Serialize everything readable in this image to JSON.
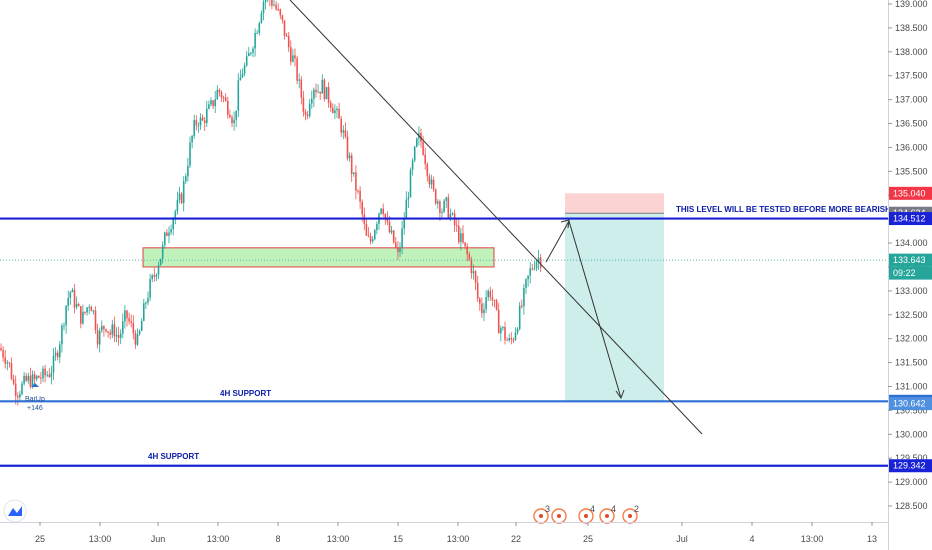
{
  "chart_data": {
    "type": "candlestick",
    "y_axis": {
      "ylim": [
        128.2,
        139.1
      ],
      "ticks": [
        "128.500",
        "129.000",
        "129.500",
        "130.000",
        "130.500",
        "131.000",
        "131.500",
        "132.000",
        "132.500",
        "133.000",
        "133.500",
        "134.000",
        "134.500",
        "135.000",
        "135.500",
        "136.000",
        "136.500",
        "137.000",
        "137.500",
        "138.000",
        "138.500",
        "139.000"
      ]
    },
    "x_axis": {
      "ticks": [
        "25",
        "13:00",
        "Jun",
        "13:00",
        "8",
        "13:00",
        "15",
        "13:00",
        "22",
        "25",
        "Jul",
        "4",
        "13:00",
        "13"
      ]
    },
    "price_path": [
      [
        0,
        131.8
      ],
      [
        6,
        131.6
      ],
      [
        10,
        131.4
      ],
      [
        14,
        131.0
      ],
      [
        18,
        130.9
      ],
      [
        22,
        131.0
      ],
      [
        26,
        131.1
      ],
      [
        30,
        131.15
      ],
      [
        34,
        131.1
      ],
      [
        38,
        131.2
      ],
      [
        42,
        131.2
      ],
      [
        46,
        131.25
      ],
      [
        50,
        131.3
      ],
      [
        54,
        131.5
      ],
      [
        58,
        131.8
      ],
      [
        62,
        132.2
      ],
      [
        66,
        132.7
      ],
      [
        70,
        133.0
      ],
      [
        74,
        132.8
      ],
      [
        78,
        132.6
      ],
      [
        82,
        132.4
      ],
      [
        86,
        132.6
      ],
      [
        90,
        132.8
      ],
      [
        94,
        132.5
      ],
      [
        98,
        132.0
      ],
      [
        102,
        132.2
      ],
      [
        106,
        132.3
      ],
      [
        110,
        132.1
      ],
      [
        114,
        132.2
      ],
      [
        118,
        132.0
      ],
      [
        122,
        132.2
      ],
      [
        126,
        132.5
      ],
      [
        130,
        132.3
      ],
      [
        134,
        132.1
      ],
      [
        138,
        131.9
      ],
      [
        142,
        132.4
      ],
      [
        146,
        132.8
      ],
      [
        150,
        133.1
      ],
      [
        154,
        133.3
      ],
      [
        158,
        133.6
      ],
      [
        162,
        133.8
      ],
      [
        166,
        134.2
      ],
      [
        170,
        134.4
      ],
      [
        174,
        134.6
      ],
      [
        178,
        134.8
      ],
      [
        182,
        135.0
      ],
      [
        186,
        135.5
      ],
      [
        190,
        136.0
      ],
      [
        194,
        136.4
      ],
      [
        198,
        136.6
      ],
      [
        202,
        136.5
      ],
      [
        206,
        136.7
      ],
      [
        210,
        136.8
      ],
      [
        214,
        137.0
      ],
      [
        218,
        137.2
      ],
      [
        222,
        137.1
      ],
      [
        226,
        136.9
      ],
      [
        230,
        136.8
      ],
      [
        234,
        136.5
      ],
      [
        238,
        137.2
      ],
      [
        242,
        137.6
      ],
      [
        246,
        137.7
      ],
      [
        250,
        138.0
      ],
      [
        254,
        138.3
      ],
      [
        258,
        138.6
      ],
      [
        262,
        139.0
      ],
      [
        266,
        139.2
      ],
      [
        270,
        139.1
      ],
      [
        274,
        139.0
      ],
      [
        278,
        138.8
      ],
      [
        282,
        138.6
      ],
      [
        286,
        138.3
      ],
      [
        290,
        138.0
      ],
      [
        294,
        137.8
      ],
      [
        298,
        137.4
      ],
      [
        302,
        137.0
      ],
      [
        306,
        136.6
      ],
      [
        310,
        137.1
      ],
      [
        314,
        137.3
      ],
      [
        318,
        137.2
      ],
      [
        322,
        137.3
      ],
      [
        326,
        137.1
      ],
      [
        330,
        137.0
      ],
      [
        334,
        136.8
      ],
      [
        338,
        136.6
      ],
      [
        342,
        136.4
      ],
      [
        346,
        136.0
      ],
      [
        350,
        135.7
      ],
      [
        354,
        135.3
      ],
      [
        358,
        135.0
      ],
      [
        362,
        134.6
      ],
      [
        366,
        134.1
      ],
      [
        370,
        134.0
      ],
      [
        374,
        134.3
      ],
      [
        378,
        134.6
      ],
      [
        382,
        134.9
      ],
      [
        386,
        134.4
      ],
      [
        390,
        134.2
      ],
      [
        394,
        134.0
      ],
      [
        398,
        133.7
      ],
      [
        402,
        134.2
      ],
      [
        406,
        134.8
      ],
      [
        410,
        135.3
      ],
      [
        414,
        135.8
      ],
      [
        418,
        136.2
      ],
      [
        422,
        136.1
      ],
      [
        426,
        135.7
      ],
      [
        430,
        135.3
      ],
      [
        434,
        135.0
      ],
      [
        438,
        134.9
      ],
      [
        442,
        134.7
      ],
      [
        446,
        134.8
      ],
      [
        450,
        134.6
      ],
      [
        454,
        134.4
      ],
      [
        458,
        134.2
      ],
      [
        462,
        134.0
      ],
      [
        466,
        133.8
      ],
      [
        470,
        133.6
      ],
      [
        474,
        133.3
      ],
      [
        478,
        132.8
      ],
      [
        482,
        132.6
      ],
      [
        486,
        132.9
      ],
      [
        490,
        133.0
      ],
      [
        494,
        132.7
      ],
      [
        498,
        132.3
      ],
      [
        502,
        132.2
      ],
      [
        506,
        132.0
      ],
      [
        510,
        131.9
      ],
      [
        514,
        132.1
      ],
      [
        518,
        132.4
      ],
      [
        522,
        132.7
      ],
      [
        526,
        133.1
      ],
      [
        530,
        133.4
      ],
      [
        534,
        133.6
      ],
      [
        538,
        133.7
      ],
      [
        542,
        133.64
      ]
    ],
    "horizontal_levels": [
      {
        "price": 134.512,
        "color": "#1a22d8"
      },
      {
        "price": 130.69,
        "color": "#2e6fd6"
      },
      {
        "price": 129.342,
        "color": "#1a22d8"
      }
    ],
    "current_price": 133.643,
    "price_tags": [
      {
        "price": 139.0,
        "label": "",
        "color": "#ffffff"
      },
      {
        "price": 135.04,
        "label": "135.040",
        "color": "#f23645"
      },
      {
        "price": 134.624,
        "label": "134.624",
        "color": "#787b86"
      },
      {
        "price": 134.512,
        "label": "134.512",
        "color": "#1a22d8"
      },
      {
        "price": 133.643,
        "label": "133.643",
        "color": "#26a69a"
      },
      {
        "price": 130.69,
        "label": "130.690",
        "color": "#2e6fd6"
      },
      {
        "price": 130.642,
        "label": "130.642",
        "color": "#4f8fe0"
      },
      {
        "price": 129.342,
        "label": "129.342",
        "color": "#1a22d8"
      }
    ],
    "countdown": "09:22",
    "support_zone": {
      "from_x_frac": 0.153,
      "to_x_frac": 0.53,
      "low": 133.5,
      "high": 133.9
    },
    "short_position": {
      "entry": 134.624,
      "stop": 135.04,
      "target": 130.69
    },
    "annotations": {
      "level_note": "THIS LEVEL WILL BE TESTED BEFORE MORE BEARISH",
      "support_1": "4H SUPPORT",
      "support_2": "4H SUPPORT",
      "indicator_name": "BarUp",
      "indicator_value": "+146"
    },
    "event_markers": [
      "3",
      "4",
      "4",
      "2"
    ]
  },
  "colors": {
    "up": "#26a69a",
    "down": "#ef5350",
    "level_blue": "#1a22d8",
    "zone_fill": "#b6f0b0",
    "zone_border": "#e04040",
    "profit_fill": "#cdeeea",
    "loss_fill": "#fbd3d3"
  },
  "logo_icon": "tradingview-logo-icon"
}
